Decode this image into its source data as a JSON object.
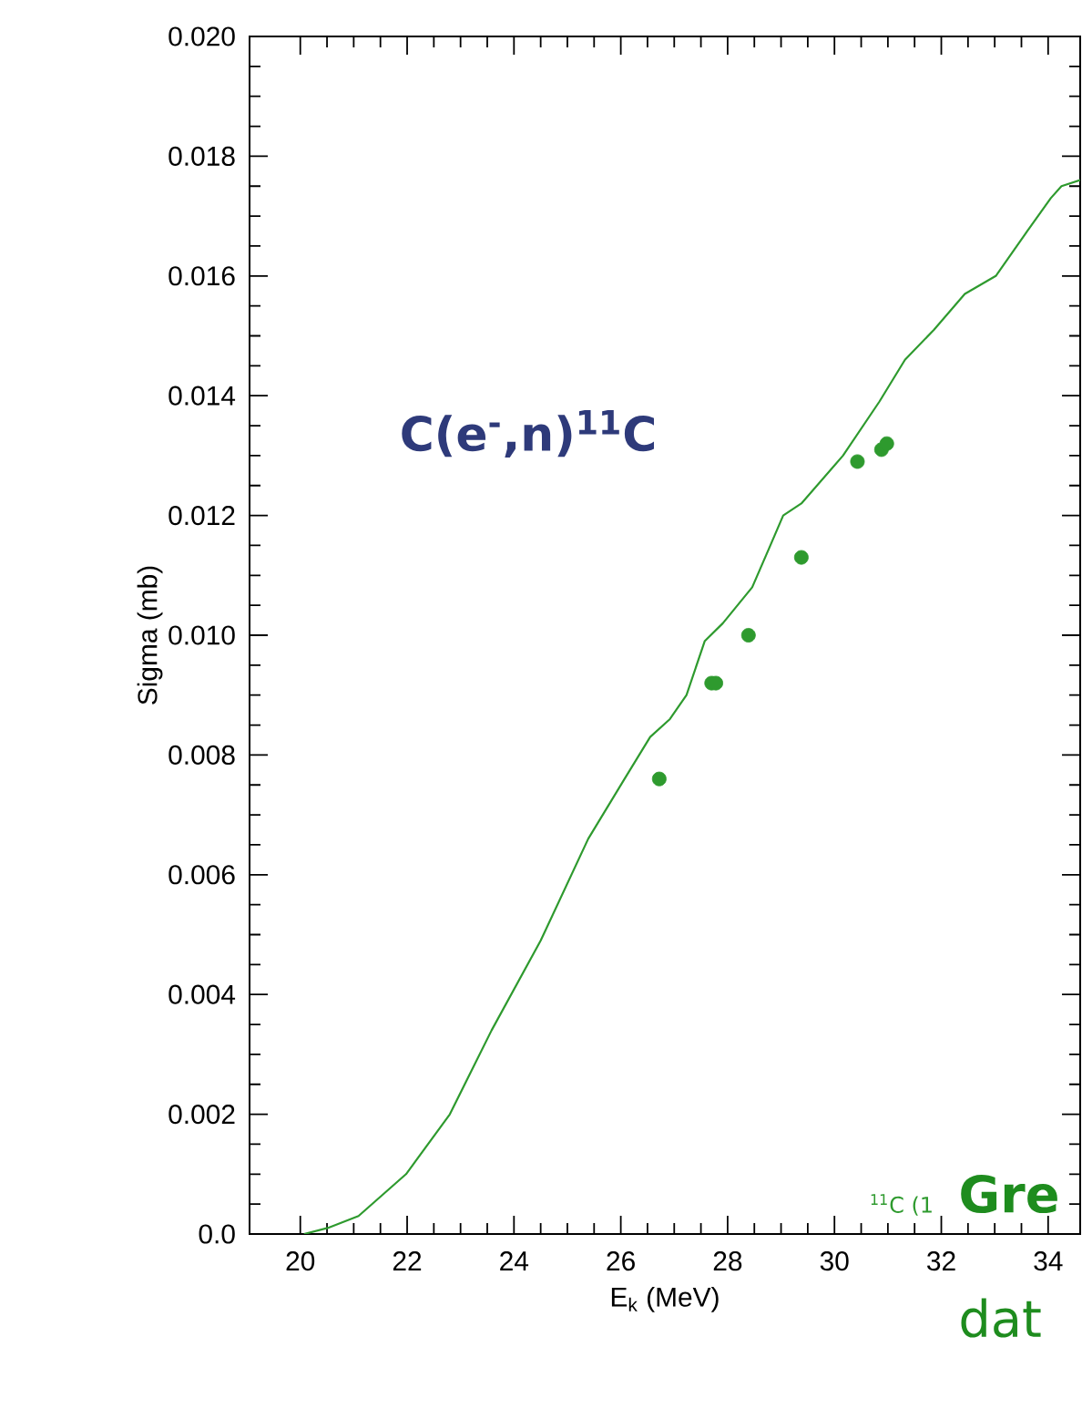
{
  "chart_data": {
    "type": "line",
    "xlabel": "E$_{k}$ (MeV)",
    "ylabel": "Sigma (mb)",
    "xlim": [
      19.05,
      34.6
    ],
    "ylim": [
      0,
      0.02
    ],
    "xticks": [
      20,
      22,
      24,
      26,
      28,
      30,
      32,
      34
    ],
    "yticks": [
      {
        "value": 0,
        "label": "0.0"
      },
      {
        "value": 0.002,
        "label": "0.002"
      },
      {
        "value": 0.004,
        "label": "0.004"
      },
      {
        "value": 0.006,
        "label": "0.006"
      },
      {
        "value": 0.008,
        "label": "0.008"
      },
      {
        "value": 0.01,
        "label": "0.010"
      },
      {
        "value": 0.012,
        "label": "0.012"
      },
      {
        "value": 0.014,
        "label": "0.014"
      },
      {
        "value": 0.016,
        "label": "0.016"
      },
      {
        "value": 0.018,
        "label": "0.018"
      },
      {
        "value": 0.02,
        "label": "0.020"
      }
    ],
    "grid": false,
    "annotations": [
      "C(e$^{-}$,n)$^{11}$C",
      "$^{11}$C (1",
      "Gre",
      "dat"
    ],
    "series": [
      {
        "color": "#2e9a2e",
        "marker": "none",
        "line_style": "solid",
        "x": [
          20.07,
          20.51,
          21.09,
          21.98,
          22.8,
          23.58,
          24.5,
          25.39,
          26.07,
          26.55,
          26.92,
          27.23,
          27.57,
          27.91,
          28.46,
          28.8,
          29.04,
          29.38,
          30.16,
          30.84,
          31.32,
          31.86,
          32.44,
          33.02,
          33.57,
          34.05,
          34.25,
          34.6
        ],
        "values": [
          0.0,
          0.0001,
          0.0003,
          0.001,
          0.002,
          0.0034,
          0.0049,
          0.0066,
          0.0076,
          0.0083,
          0.0086,
          0.009,
          0.0099,
          0.0102,
          0.0108,
          0.0115,
          0.012,
          0.0122,
          0.013,
          0.0139,
          0.0146,
          0.0151,
          0.0157,
          0.016,
          0.0167,
          0.0173,
          0.0175,
          0.0176
        ]
      },
      {
        "type": "scatter",
        "color": "#2e9a2e",
        "marker": "circle",
        "x": [
          26.72,
          27.7,
          27.78,
          28.39,
          29.38,
          30.43,
          30.88,
          30.98
        ],
        "values": [
          0.0076,
          0.0092,
          0.0092,
          0.01,
          0.0113,
          0.0129,
          0.0131,
          0.0132
        ]
      }
    ]
  }
}
